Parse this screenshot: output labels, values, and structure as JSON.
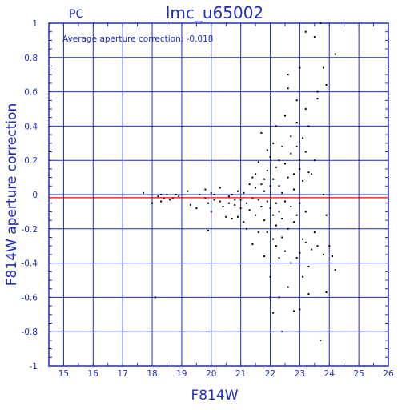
{
  "header": {
    "left_label": "PC",
    "title": "lmc_u65002",
    "annotation": "Average aperture correction: -0.018"
  },
  "chart_data": {
    "type": "scatter",
    "title": "lmc_u65002",
    "xlabel": "F814W",
    "ylabel": "F814W aperture correction",
    "xlim": [
      14.5,
      26
    ],
    "ylim": [
      -1,
      1
    ],
    "xticks": [
      15,
      16,
      17,
      18,
      19,
      20,
      21,
      22,
      23,
      24,
      25,
      26
    ],
    "yticks": [
      -1,
      -0.8,
      -0.6,
      -0.4,
      -0.2,
      0,
      0.2,
      0.4,
      0.6,
      0.8,
      1
    ],
    "ytick_labels": [
      "-1",
      "-0.8",
      "-0.6",
      "-0.4",
      "-0.2",
      "0",
      "0.2",
      "0.4",
      "0.6",
      "0.8",
      "1"
    ],
    "grid": true,
    "reference_line": {
      "y": -0.018,
      "color": "#ff0000"
    },
    "colors": {
      "axes": "#1f2dbf",
      "points": "#000000"
    },
    "points": [
      [
        17.7,
        0.01
      ],
      [
        18.0,
        -0.05
      ],
      [
        18.1,
        -0.6
      ],
      [
        18.2,
        -0.01
      ],
      [
        18.3,
        -0.04
      ],
      [
        18.3,
        0.0
      ],
      [
        18.4,
        -0.02
      ],
      [
        18.5,
        0.0
      ],
      [
        18.6,
        -0.03
      ],
      [
        18.7,
        -0.02
      ],
      [
        18.8,
        0.0
      ],
      [
        18.9,
        -0.01
      ],
      [
        19.2,
        0.02
      ],
      [
        19.3,
        -0.06
      ],
      [
        19.5,
        -0.08
      ],
      [
        19.6,
        0.0
      ],
      [
        19.8,
        -0.02
      ],
      [
        19.8,
        0.03
      ],
      [
        19.9,
        -0.21
      ],
      [
        19.9,
        -0.05
      ],
      [
        20.0,
        0.01
      ],
      [
        20.0,
        -0.1
      ],
      [
        20.1,
        -0.03
      ],
      [
        20.1,
        0.0
      ],
      [
        20.3,
        -0.04
      ],
      [
        20.3,
        0.04
      ],
      [
        20.4,
        -0.07
      ],
      [
        20.5,
        -0.13
      ],
      [
        20.6,
        -0.01
      ],
      [
        20.6,
        -0.05
      ],
      [
        20.7,
        0.0
      ],
      [
        20.7,
        -0.14
      ],
      [
        20.8,
        -0.06
      ],
      [
        20.8,
        -0.03
      ],
      [
        20.9,
        -0.13
      ],
      [
        20.9,
        0.02
      ],
      [
        21.0,
        -0.08
      ],
      [
        21.0,
        -0.03
      ],
      [
        21.1,
        0.01
      ],
      [
        21.1,
        -0.16
      ],
      [
        21.2,
        -0.2
      ],
      [
        21.2,
        -0.05
      ],
      [
        21.3,
        0.06
      ],
      [
        21.3,
        -0.09
      ],
      [
        21.4,
        0.1
      ],
      [
        21.4,
        -0.02
      ],
      [
        21.4,
        -0.29
      ],
      [
        21.5,
        0.04
      ],
      [
        21.5,
        -0.12
      ],
      [
        21.5,
        0.12
      ],
      [
        21.6,
        0.19
      ],
      [
        21.6,
        -0.03
      ],
      [
        21.6,
        -0.22
      ],
      [
        21.7,
        0.06
      ],
      [
        21.7,
        -0.07
      ],
      [
        21.7,
        0.36
      ],
      [
        21.8,
        0.02
      ],
      [
        21.8,
        -0.15
      ],
      [
        21.8,
        0.09
      ],
      [
        21.8,
        -0.36
      ],
      [
        21.9,
        0.26
      ],
      [
        21.9,
        -0.04
      ],
      [
        21.9,
        0.14
      ],
      [
        21.9,
        -0.22
      ],
      [
        22.0,
        -0.48
      ],
      [
        22.0,
        -0.6
      ],
      [
        22.0,
        0.22
      ],
      [
        22.0,
        -0.08
      ],
      [
        22.0,
        0.05
      ],
      [
        22.1,
        -0.69
      ],
      [
        22.1,
        0.3
      ],
      [
        22.1,
        -0.12
      ],
      [
        22.1,
        0.09
      ],
      [
        22.1,
        -0.26
      ],
      [
        22.2,
        -0.3
      ],
      [
        22.2,
        0.4
      ],
      [
        22.2,
        0.16
      ],
      [
        22.2,
        -0.05
      ],
      [
        22.2,
        -0.18
      ],
      [
        22.3,
        -0.6
      ],
      [
        22.3,
        0.2
      ],
      [
        22.3,
        -0.1
      ],
      [
        22.3,
        0.05
      ],
      [
        22.3,
        -0.37
      ],
      [
        22.4,
        -0.8
      ],
      [
        22.4,
        0.28
      ],
      [
        22.4,
        0.01
      ],
      [
        22.4,
        -0.25
      ],
      [
        22.4,
        -0.14
      ],
      [
        22.5,
        -0.33
      ],
      [
        22.5,
        0.18
      ],
      [
        22.5,
        -0.04
      ],
      [
        22.5,
        0.46
      ],
      [
        22.6,
        -0.54
      ],
      [
        22.6,
        0.1
      ],
      [
        22.6,
        -0.2
      ],
      [
        22.6,
        0.7
      ],
      [
        22.6,
        0.62
      ],
      [
        22.7,
        -0.4
      ],
      [
        22.7,
        0.24
      ],
      [
        22.7,
        -0.07
      ],
      [
        22.7,
        0.34
      ],
      [
        22.8,
        -0.68
      ],
      [
        22.8,
        0.12
      ],
      [
        22.8,
        -0.16
      ],
      [
        22.8,
        0.03
      ],
      [
        22.9,
        -0.37
      ],
      [
        22.9,
        0.55
      ],
      [
        22.9,
        0.28
      ],
      [
        22.9,
        -0.12
      ],
      [
        22.9,
        0.42
      ],
      [
        23.0,
        -0.67
      ],
      [
        23.0,
        -0.34
      ],
      [
        23.0,
        0.74
      ],
      [
        23.0,
        0.2
      ],
      [
        23.0,
        -0.05
      ],
      [
        23.0,
        0.15
      ],
      [
        23.1,
        -0.26
      ],
      [
        23.1,
        0.33
      ],
      [
        23.1,
        0.08
      ],
      [
        23.1,
        -0.48
      ],
      [
        23.2,
        0.5
      ],
      [
        23.2,
        -0.1
      ],
      [
        23.2,
        0.25
      ],
      [
        23.2,
        -0.28
      ],
      [
        23.2,
        0.95
      ],
      [
        23.3,
        -0.58
      ],
      [
        23.3,
        0.4
      ],
      [
        23.3,
        0.13
      ],
      [
        23.3,
        -0.42
      ],
      [
        23.4,
        0.12
      ],
      [
        23.4,
        -0.32
      ],
      [
        23.5,
        0.92
      ],
      [
        23.5,
        0.2
      ],
      [
        23.5,
        -0.22
      ],
      [
        23.6,
        0.56
      ],
      [
        23.6,
        -0.3
      ],
      [
        23.6,
        0.6
      ],
      [
        23.7,
        -0.85
      ],
      [
        23.7,
        1.0
      ],
      [
        23.8,
        -0.35
      ],
      [
        23.8,
        0.74
      ],
      [
        23.8,
        0.0
      ],
      [
        23.9,
        -0.12
      ],
      [
        23.9,
        0.64
      ],
      [
        23.9,
        -0.57
      ],
      [
        24.0,
        -0.3
      ],
      [
        24.1,
        -0.36
      ],
      [
        24.2,
        -0.44
      ],
      [
        24.2,
        0.82
      ]
    ]
  }
}
